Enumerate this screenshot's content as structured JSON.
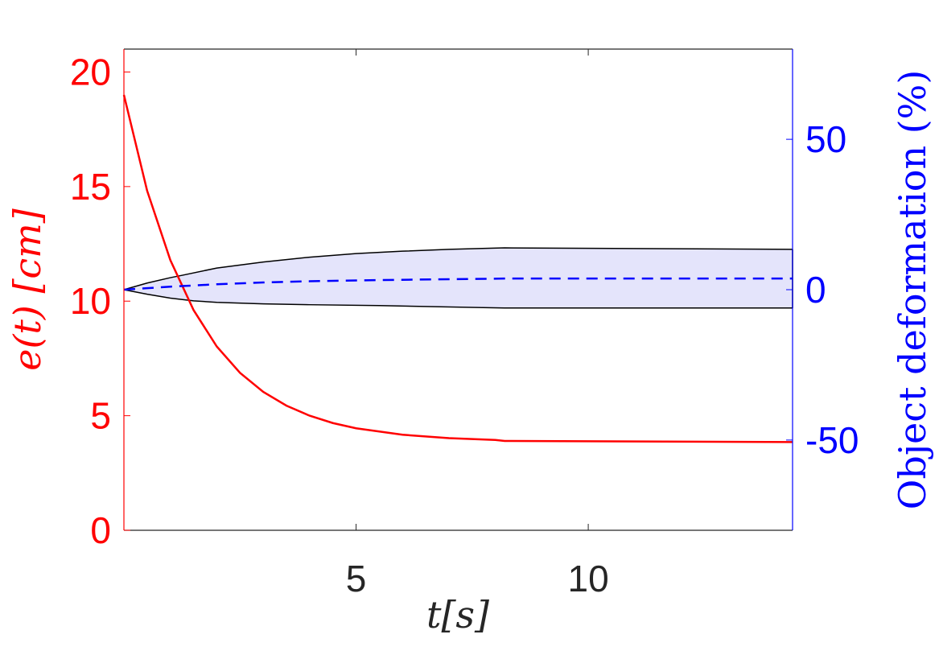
{
  "chart_data": {
    "type": "line",
    "xlabel": "t[s]",
    "ylabel_left": "e(t) [cm]",
    "ylabel_right": "Object deformation (%)",
    "xlim": [
      0,
      14.4
    ],
    "ylim_left": [
      0,
      21
    ],
    "ylim_right": [
      -80,
      80
    ],
    "xticks": [
      5,
      10
    ],
    "yticks_left": [
      0,
      5,
      10,
      15,
      20
    ],
    "yticks_right": [
      -50,
      0,
      50
    ],
    "grid": false,
    "colors": {
      "left_axis": "#ff0000",
      "right_axis": "#0000ff",
      "band_fill": "#e4e4fb",
      "band_edge": "#000000",
      "box": "#262626"
    },
    "series": [
      {
        "axis": "left",
        "style": "solid",
        "color": "#ff0000",
        "x": [
          0,
          0.5,
          1,
          1.5,
          2,
          2.5,
          3,
          3.5,
          4,
          4.5,
          5,
          6,
          7,
          8,
          8.2,
          14.4
        ],
        "y": [
          19.0,
          14.82,
          11.79,
          9.61,
          8.02,
          6.87,
          6.04,
          5.44,
          5.0,
          4.68,
          4.45,
          4.17,
          4.02,
          3.94,
          3.9,
          3.85
        ]
      },
      {
        "axis": "right",
        "style": "dashed",
        "color": "#0000ff",
        "x": [
          0,
          1,
          2,
          3,
          4,
          5.5,
          8.2,
          14.4
        ],
        "y": [
          0,
          1.0,
          1.8,
          2.4,
          2.8,
          3.2,
          3.7,
          3.7
        ]
      }
    ],
    "band": {
      "axis": "right",
      "upper": {
        "x": [
          0,
          0.5,
          1,
          1.26,
          2,
          3,
          4,
          5,
          6,
          7,
          8.2,
          14.4
        ],
        "y": [
          0,
          2.2,
          4.0,
          4.8,
          7.2,
          9.2,
          10.8,
          12.0,
          12.8,
          13.4,
          13.9,
          13.4
        ]
      },
      "lower": {
        "x": [
          0,
          0.5,
          1,
          1.5,
          2,
          3,
          4,
          5.5,
          8.2,
          14.4
        ],
        "y": [
          0,
          -1.5,
          -2.8,
          -3.7,
          -4.2,
          -4.7,
          -5.0,
          -5.3,
          -6.1,
          -6.1
        ]
      }
    }
  }
}
